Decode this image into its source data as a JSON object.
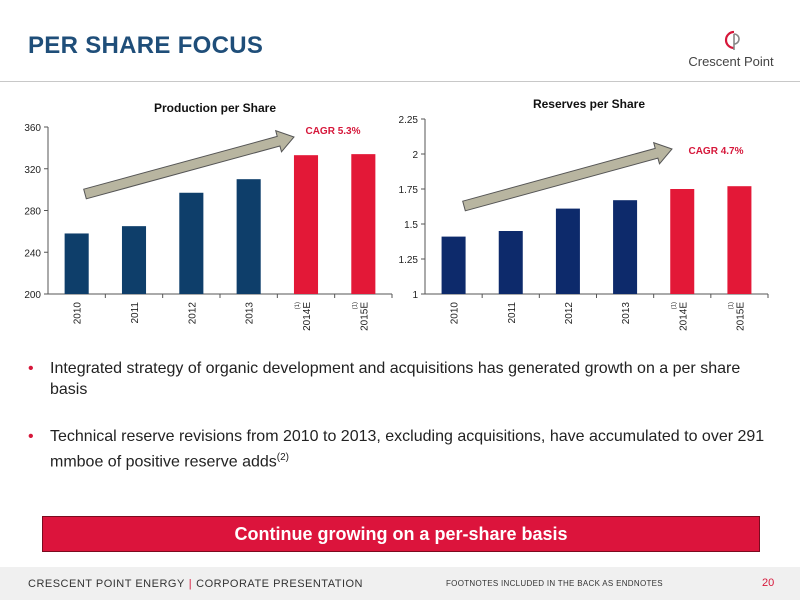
{
  "title": "PER SHARE FOCUS",
  "logo": {
    "text": "Crescent Point",
    "icon": "cp-logo-icon"
  },
  "chart_data": [
    {
      "type": "bar",
      "title": "Production per Share",
      "categories": [
        "2010",
        "2011",
        "2012",
        "2013",
        "2014E",
        "2015E"
      ],
      "category_footnotes": [
        "",
        "",
        "",
        "",
        "(1)",
        "(1)"
      ],
      "values": [
        258,
        265,
        297,
        310,
        333,
        334
      ],
      "bar_colors": [
        "#0e3e6a",
        "#0e3e6a",
        "#0e3e6a",
        "#0e3e6a",
        "#e31837",
        "#e31837"
      ],
      "ylim": [
        200,
        360
      ],
      "yticks": [
        200,
        240,
        280,
        320,
        360
      ],
      "ytick_labels": [
        "200",
        "240",
        "280",
        "320",
        "360"
      ],
      "annotation": "CAGR 5.3%",
      "grid": false
    },
    {
      "type": "bar",
      "title": "Reserves per Share",
      "categories": [
        "2010",
        "2011",
        "2012",
        "2013",
        "2014E",
        "2015E"
      ],
      "category_footnotes": [
        "",
        "",
        "",
        "",
        "(1)",
        "(1)"
      ],
      "values": [
        1.41,
        1.45,
        1.61,
        1.67,
        1.75,
        1.77
      ],
      "bar_colors": [
        "#0d2a6b",
        "#0d2a6b",
        "#0d2a6b",
        "#0d2a6b",
        "#e31837",
        "#e31837"
      ],
      "ylim": [
        1,
        2.25
      ],
      "yticks": [
        1,
        1.25,
        1.5,
        1.75,
        2,
        2.25
      ],
      "ytick_labels": [
        "1",
        "1.25",
        "1.5",
        "1.75",
        "2",
        "2.25"
      ],
      "annotation": "CAGR 4.7%",
      "grid": false
    }
  ],
  "bullets": [
    {
      "text": "Integrated strategy of organic development and acquisitions has generated growth on a per share basis",
      "sup": ""
    },
    {
      "text": "Technical reserve revisions from 2010 to 2013, excluding acquisitions, have accumulated to over 291 mmboe of positive reserve adds",
      "sup": "(2)"
    }
  ],
  "bullet_char": "•",
  "banner": "Continue growing on a per-share basis",
  "footer": {
    "company": "CRESCENT POINT ENERGY",
    "separator": "|",
    "presentation": "CORPORATE PRESENTATION",
    "note": "FOOTNOTES INCLUDED IN THE BACK AS ENDNOTES",
    "page": "20"
  },
  "colors": {
    "title": "#1f4e79",
    "accent": "#d6173a",
    "arrow_fill": "#b8b5a0"
  }
}
